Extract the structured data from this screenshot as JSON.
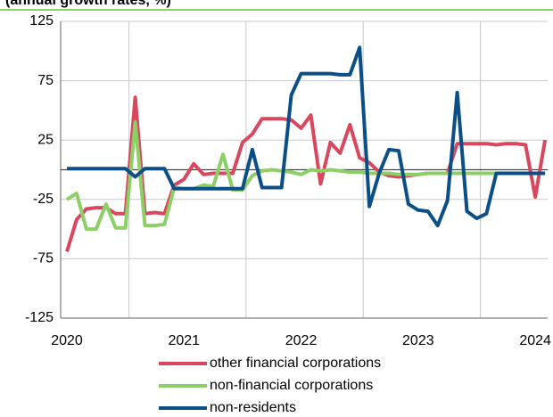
{
  "chart_data": {
    "type": "line",
    "subtitle": "(annual growth rates, %)",
    "categories": [
      "2020",
      null,
      null,
      null,
      null,
      null,
      null,
      null,
      null,
      null,
      null,
      null,
      "2021",
      null,
      null,
      null,
      null,
      null,
      null,
      null,
      null,
      null,
      null,
      null,
      "2022",
      null,
      null,
      null,
      null,
      null,
      null,
      null,
      null,
      null,
      null,
      null,
      "2023",
      null,
      null,
      null,
      null,
      null,
      null,
      null,
      null,
      null,
      null,
      null,
      "2024",
      null
    ],
    "series": [
      {
        "name": "other financial corporations",
        "color": "#d9475f",
        "values": [
          -69,
          -42,
          -33,
          -32,
          -32,
          -37,
          -37,
          61,
          -37,
          -36,
          -37,
          -13,
          -8,
          5,
          -4,
          -3,
          -3,
          -3,
          23,
          30,
          43,
          43,
          43,
          42,
          35,
          46,
          -12,
          23,
          14,
          38,
          10,
          6,
          -2,
          -5,
          -6,
          -5,
          -4,
          -3,
          -3,
          -3,
          22,
          22,
          22,
          22,
          21,
          22,
          22,
          21,
          -23,
          25
        ]
      },
      {
        "name": "non-financial corporations",
        "color": "#8dcf67",
        "values": [
          -25,
          -20,
          -50,
          -50,
          -29,
          -49,
          -49,
          40,
          -47,
          -47,
          -46,
          -15,
          -16,
          -16,
          -13,
          -14,
          13,
          -17,
          -17,
          -5,
          -1,
          0,
          -1,
          -2,
          -4,
          0,
          -1,
          0,
          -1,
          -2,
          -2,
          -3,
          -3,
          -3,
          -4,
          -4,
          -4,
          -3,
          -3,
          -3,
          -3,
          -3,
          -3,
          -3,
          -3,
          -3,
          -3,
          -3,
          -3,
          -3
        ]
      },
      {
        "name": "non-residents",
        "color": "#0b4f86",
        "values": [
          1,
          1,
          1,
          1,
          1,
          1,
          1,
          -6,
          1,
          1,
          1,
          -16,
          -16,
          -16,
          -16,
          -16,
          -16,
          -16,
          -16,
          17,
          -15,
          -15,
          -15,
          63,
          81,
          81,
          81,
          81,
          80,
          80,
          103,
          -31,
          -3,
          17,
          16,
          -29,
          -34,
          -35,
          -47,
          -26,
          65,
          -35,
          -41,
          -37,
          -3,
          -3,
          -3,
          -3,
          -3,
          -3
        ]
      }
    ],
    "ylim": [
      -125,
      125
    ],
    "yticks": [
      -125,
      -75,
      -25,
      25,
      75,
      125
    ],
    "grid": true,
    "legend": "bottom"
  }
}
